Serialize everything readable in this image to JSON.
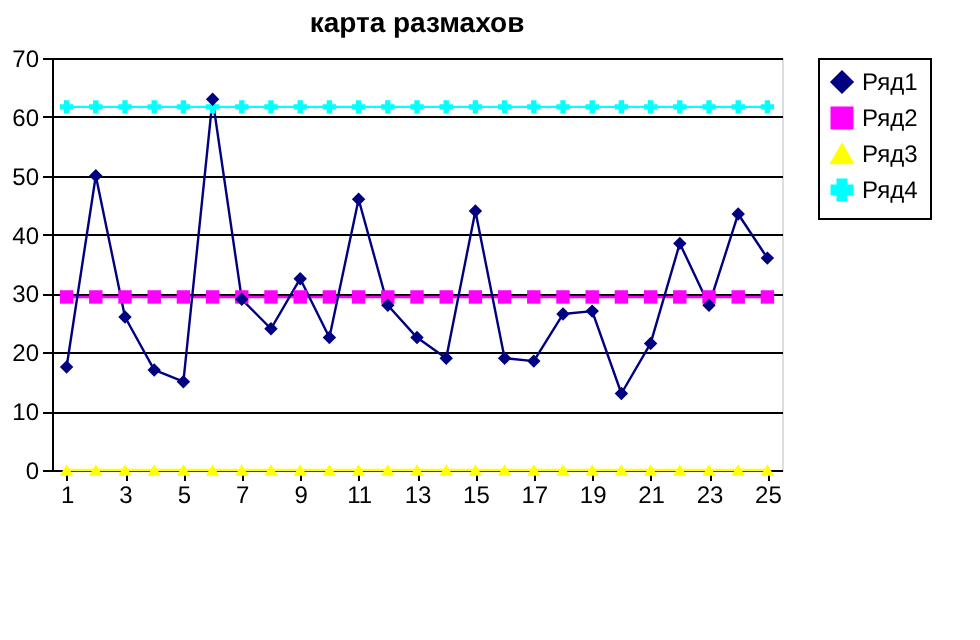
{
  "chart_data": {
    "type": "line",
    "title": "карта размахов",
    "x": [
      1,
      2,
      3,
      4,
      5,
      6,
      7,
      8,
      9,
      10,
      11,
      12,
      13,
      14,
      15,
      16,
      17,
      18,
      19,
      20,
      21,
      22,
      23,
      24,
      25
    ],
    "series": [
      {
        "name": "Ряд1",
        "color": "#000080",
        "marker": "diamond",
        "values": [
          17.5,
          50,
          26,
          17,
          15,
          63,
          29,
          24,
          32.5,
          22.5,
          46,
          28,
          22.5,
          19,
          44,
          19,
          18.5,
          26.5,
          27,
          13,
          21.5,
          38.5,
          28,
          43.5,
          36
        ]
      },
      {
        "name": "Ряд2",
        "color": "#ff00ff",
        "marker": "square",
        "values": [
          29.4,
          29.4,
          29.4,
          29.4,
          29.4,
          29.4,
          29.4,
          29.4,
          29.4,
          29.4,
          29.4,
          29.4,
          29.4,
          29.4,
          29.4,
          29.4,
          29.4,
          29.4,
          29.4,
          29.4,
          29.4,
          29.4,
          29.4,
          29.4,
          29.4
        ]
      },
      {
        "name": "Ряд3",
        "color": "#ffff00",
        "marker": "triangle",
        "values": [
          0,
          0,
          0,
          0,
          0,
          0,
          0,
          0,
          0,
          0,
          0,
          0,
          0,
          0,
          0,
          0,
          0,
          0,
          0,
          0,
          0,
          0,
          0,
          0,
          0
        ]
      },
      {
        "name": "Ряд4",
        "color": "#00ffff",
        "marker": "cross",
        "values": [
          61.7,
          61.7,
          61.7,
          61.7,
          61.7,
          61.7,
          61.7,
          61.7,
          61.7,
          61.7,
          61.7,
          61.7,
          61.7,
          61.7,
          61.7,
          61.7,
          61.7,
          61.7,
          61.7,
          61.7,
          61.7,
          61.7,
          61.7,
          61.7,
          61.7
        ]
      }
    ],
    "xlim": [
      0.5,
      25.5
    ],
    "xticks": [
      1,
      3,
      5,
      7,
      9,
      11,
      13,
      15,
      17,
      19,
      21,
      23,
      25
    ],
    "ylim": [
      0,
      70
    ],
    "yticks": [
      0,
      10,
      20,
      30,
      40,
      50,
      60,
      70
    ],
    "grid": "y",
    "legend": "right"
  }
}
